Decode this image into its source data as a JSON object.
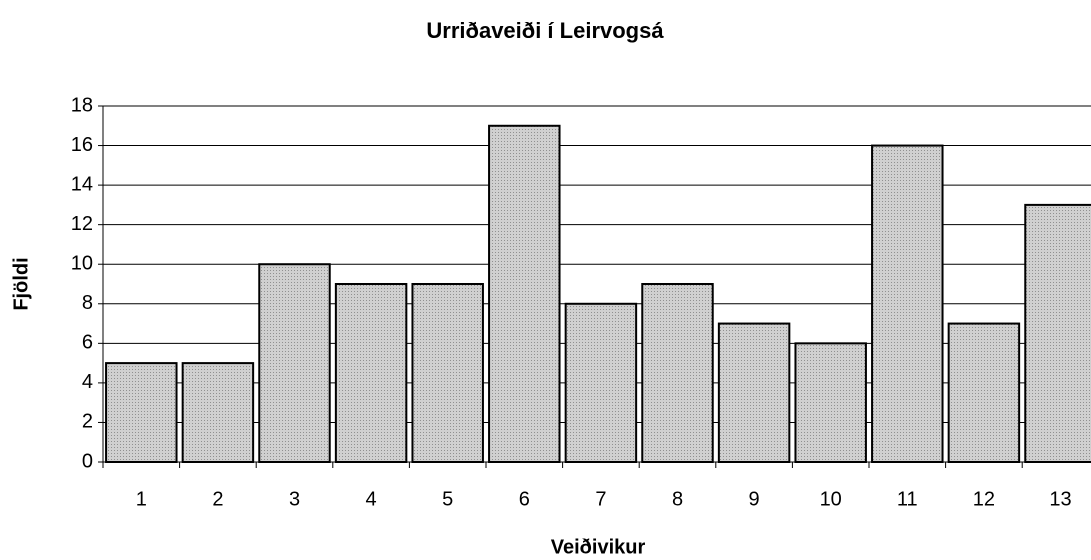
{
  "chart_data": {
    "type": "bar",
    "title": "Urriðaveiði í Leirvogsá",
    "x_label": "Veiðivikur",
    "y_label": "Fjöldi",
    "categories": [
      "1",
      "2",
      "3",
      "4",
      "5",
      "6",
      "7",
      "8",
      "9",
      "10",
      "11",
      "12",
      "13"
    ],
    "values": [
      5,
      5,
      10,
      9,
      9,
      17,
      8,
      9,
      7,
      6,
      16,
      7,
      13
    ],
    "color": "#c0c0c0",
    "ylim": [
      0,
      18
    ],
    "yticks": [
      0,
      2,
      4,
      6,
      8,
      10,
      12,
      14,
      16,
      18
    ],
    "grid": true
  }
}
